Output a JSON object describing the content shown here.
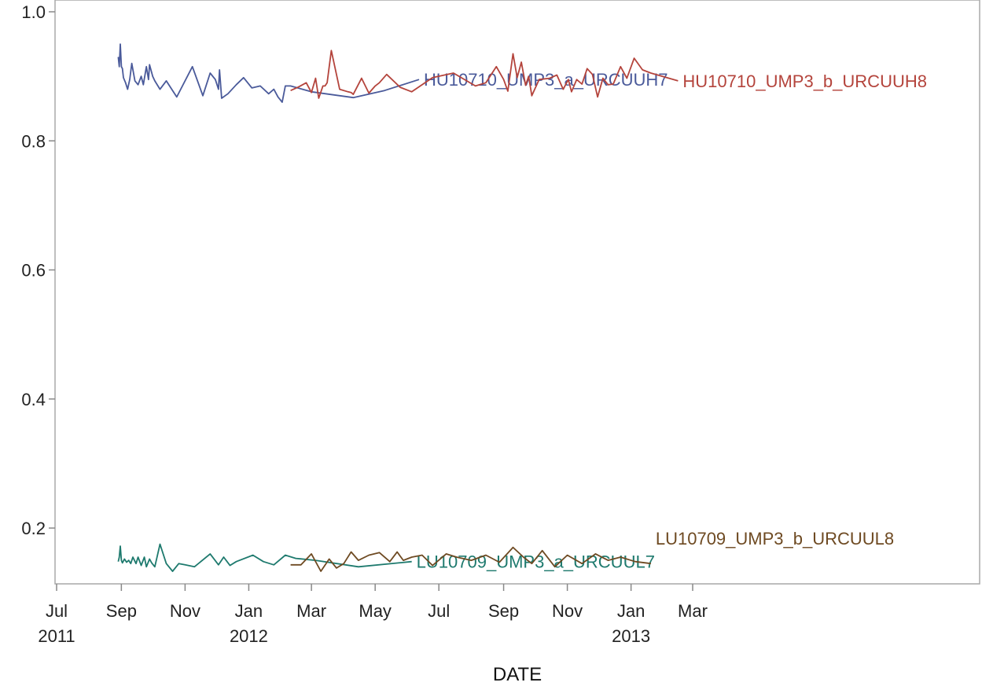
{
  "chart_data": {
    "type": "line",
    "title": "",
    "xlabel": "DATE",
    "ylabel": "",
    "xlim": [
      "2011-07-01",
      "2013-03-01"
    ],
    "ylim": [
      0.12,
      1.0
    ],
    "grid": false,
    "legend": "none",
    "y_ticks": [
      {
        "value": 0.2,
        "label": "0.2"
      },
      {
        "value": 0.4,
        "label": "0.4"
      },
      {
        "value": 0.6,
        "label": "0.6"
      },
      {
        "value": 0.8,
        "label": "0.8"
      },
      {
        "value": 1.0,
        "label": "1.0"
      }
    ],
    "x_ticks": [
      {
        "date": "2011-07-01",
        "label": "Jul",
        "year": "2011"
      },
      {
        "date": "2011-09-01",
        "label": "Sep",
        "year": ""
      },
      {
        "date": "2011-11-01",
        "label": "Nov",
        "year": ""
      },
      {
        "date": "2012-01-01",
        "label": "Jan",
        "year": "2012"
      },
      {
        "date": "2012-03-01",
        "label": "Mar",
        "year": ""
      },
      {
        "date": "2012-05-01",
        "label": "May",
        "year": ""
      },
      {
        "date": "2012-07-01",
        "label": "Jul",
        "year": ""
      },
      {
        "date": "2012-09-01",
        "label": "Sep",
        "year": ""
      },
      {
        "date": "2012-11-01",
        "label": "Nov",
        "year": ""
      },
      {
        "date": "2013-01-01",
        "label": "Jan",
        "year": "2013"
      },
      {
        "date": "2013-03-01",
        "label": "Mar",
        "year": ""
      }
    ],
    "series": [
      {
        "name": "HU10710_UMP3_a_URCUUH7",
        "color": "#4a5a9a",
        "label_position": "end",
        "x": [
          "2011-08-29",
          "2011-08-30",
          "2011-08-31",
          "2011-09-01",
          "2011-09-02",
          "2011-09-03",
          "2011-09-05",
          "2011-09-07",
          "2011-09-09",
          "2011-09-11",
          "2011-09-14",
          "2011-09-17",
          "2011-09-20",
          "2011-09-22",
          "2011-09-25",
          "2011-09-27",
          "2011-09-28",
          "2011-10-01",
          "2011-10-03",
          "2011-10-08",
          "2011-10-14",
          "2011-10-20",
          "2011-10-24",
          "2011-11-08",
          "2011-11-18",
          "2011-11-25",
          "2011-11-30",
          "2011-12-03",
          "2011-12-04",
          "2011-12-06",
          "2011-12-12",
          "2011-12-20",
          "2011-12-27",
          "2012-01-04",
          "2012-01-12",
          "2012-01-20",
          "2012-01-25",
          "2012-01-29",
          "2012-02-02",
          "2012-02-05",
          "2012-02-10",
          "2012-03-01",
          "2012-04-10",
          "2012-05-10",
          "2012-06-12"
        ],
        "y": [
          0.93,
          0.915,
          0.95,
          0.915,
          0.912,
          0.898,
          0.89,
          0.88,
          0.895,
          0.92,
          0.893,
          0.887,
          0.9,
          0.887,
          0.915,
          0.895,
          0.918,
          0.9,
          0.893,
          0.88,
          0.893,
          0.878,
          0.868,
          0.915,
          0.87,
          0.905,
          0.895,
          0.88,
          0.91,
          0.866,
          0.873,
          0.887,
          0.898,
          0.882,
          0.885,
          0.873,
          0.88,
          0.868,
          0.86,
          0.885,
          0.885,
          0.876,
          0.867,
          0.878,
          0.895
        ]
      },
      {
        "name": "HU10710_UMP3_b_URCUUH8",
        "color": "#b4443c",
        "label_position": "end",
        "x": [
          "2012-02-10",
          "2012-02-17",
          "2012-02-25",
          "2012-03-01",
          "2012-03-05",
          "2012-03-08",
          "2012-03-12",
          "2012-03-14",
          "2012-03-16",
          "2012-03-20",
          "2012-03-28",
          "2012-04-05",
          "2012-04-08",
          "2012-04-10",
          "2012-04-18",
          "2012-04-25",
          "2012-05-01",
          "2012-05-05",
          "2012-05-12",
          "2012-05-25",
          "2012-06-05",
          "2012-06-25",
          "2012-07-15",
          "2012-08-05",
          "2012-08-15",
          "2012-08-25",
          "2012-09-01",
          "2012-09-05",
          "2012-09-10",
          "2012-09-14",
          "2012-09-18",
          "2012-09-22",
          "2012-09-25",
          "2012-09-28",
          "2012-10-05",
          "2012-10-15",
          "2012-10-22",
          "2012-10-28",
          "2012-11-02",
          "2012-11-05",
          "2012-11-10",
          "2012-11-15",
          "2012-11-20",
          "2012-11-25",
          "2012-11-30",
          "2012-12-05",
          "2012-12-10",
          "2012-12-15",
          "2012-12-22",
          "2012-12-28",
          "2013-01-04",
          "2013-01-12",
          "2013-01-20",
          "2013-02-15"
        ],
        "y": [
          0.878,
          0.883,
          0.89,
          0.875,
          0.897,
          0.866,
          0.885,
          0.885,
          0.89,
          0.94,
          0.88,
          0.876,
          0.875,
          0.872,
          0.897,
          0.874,
          0.885,
          0.89,
          0.903,
          0.883,
          0.876,
          0.898,
          0.905,
          0.885,
          0.89,
          0.915,
          0.895,
          0.877,
          0.935,
          0.898,
          0.922,
          0.886,
          0.9,
          0.87,
          0.895,
          0.897,
          0.902,
          0.88,
          0.895,
          0.876,
          0.895,
          0.888,
          0.912,
          0.903,
          0.868,
          0.897,
          0.887,
          0.888,
          0.915,
          0.897,
          0.928,
          0.91,
          0.905,
          0.893
        ]
      },
      {
        "name": "LU10709_UMP3_a_URCUUL7",
        "color": "#1e7a6e",
        "label_position": "end",
        "x": [
          "2011-08-29",
          "2011-08-30",
          "2011-08-31",
          "2011-09-01",
          "2011-09-02",
          "2011-09-04",
          "2011-09-06",
          "2011-09-08",
          "2011-09-10",
          "2011-09-12",
          "2011-09-15",
          "2011-09-17",
          "2011-09-20",
          "2011-09-23",
          "2011-09-25",
          "2011-09-28",
          "2011-09-30",
          "2011-10-03",
          "2011-10-08",
          "2011-10-14",
          "2011-10-20",
          "2011-10-26",
          "2011-11-01",
          "2011-11-10",
          "2011-11-25",
          "2011-12-03",
          "2011-12-08",
          "2011-12-14",
          "2011-12-20",
          "2012-01-05",
          "2012-01-15",
          "2012-01-25",
          "2012-02-05",
          "2012-02-15",
          "2012-03-05",
          "2012-04-15",
          "2012-06-05"
        ],
        "y": [
          0.148,
          0.155,
          0.172,
          0.15,
          0.146,
          0.152,
          0.147,
          0.15,
          0.145,
          0.155,
          0.145,
          0.155,
          0.142,
          0.155,
          0.14,
          0.152,
          0.146,
          0.14,
          0.175,
          0.145,
          0.133,
          0.145,
          0.143,
          0.14,
          0.16,
          0.143,
          0.155,
          0.142,
          0.148,
          0.158,
          0.148,
          0.143,
          0.158,
          0.153,
          0.15,
          0.14,
          0.148
        ]
      },
      {
        "name": "LU10709_UMP3_b_URCUUL8",
        "color": "#6e4a22",
        "label_position": "upper-end",
        "x": [
          "2012-02-10",
          "2012-02-20",
          "2012-03-01",
          "2012-03-10",
          "2012-03-18",
          "2012-03-25",
          "2012-04-01",
          "2012-04-08",
          "2012-04-15",
          "2012-04-25",
          "2012-05-05",
          "2012-05-15",
          "2012-05-22",
          "2012-05-28",
          "2012-06-05",
          "2012-06-15",
          "2012-06-25",
          "2012-07-08",
          "2012-07-18",
          "2012-08-01",
          "2012-08-15",
          "2012-08-28",
          "2012-09-10",
          "2012-09-20",
          "2012-09-28",
          "2012-10-08",
          "2012-10-20",
          "2012-11-01",
          "2012-11-15",
          "2012-11-28",
          "2012-12-10",
          "2012-12-22",
          "2013-01-05",
          "2013-01-20"
        ],
        "y": [
          0.143,
          0.143,
          0.16,
          0.133,
          0.152,
          0.138,
          0.145,
          0.163,
          0.15,
          0.158,
          0.162,
          0.148,
          0.163,
          0.15,
          0.155,
          0.158,
          0.142,
          0.16,
          0.155,
          0.15,
          0.158,
          0.147,
          0.17,
          0.155,
          0.145,
          0.165,
          0.14,
          0.158,
          0.145,
          0.16,
          0.15,
          0.155,
          0.148,
          0.145
        ]
      }
    ]
  }
}
